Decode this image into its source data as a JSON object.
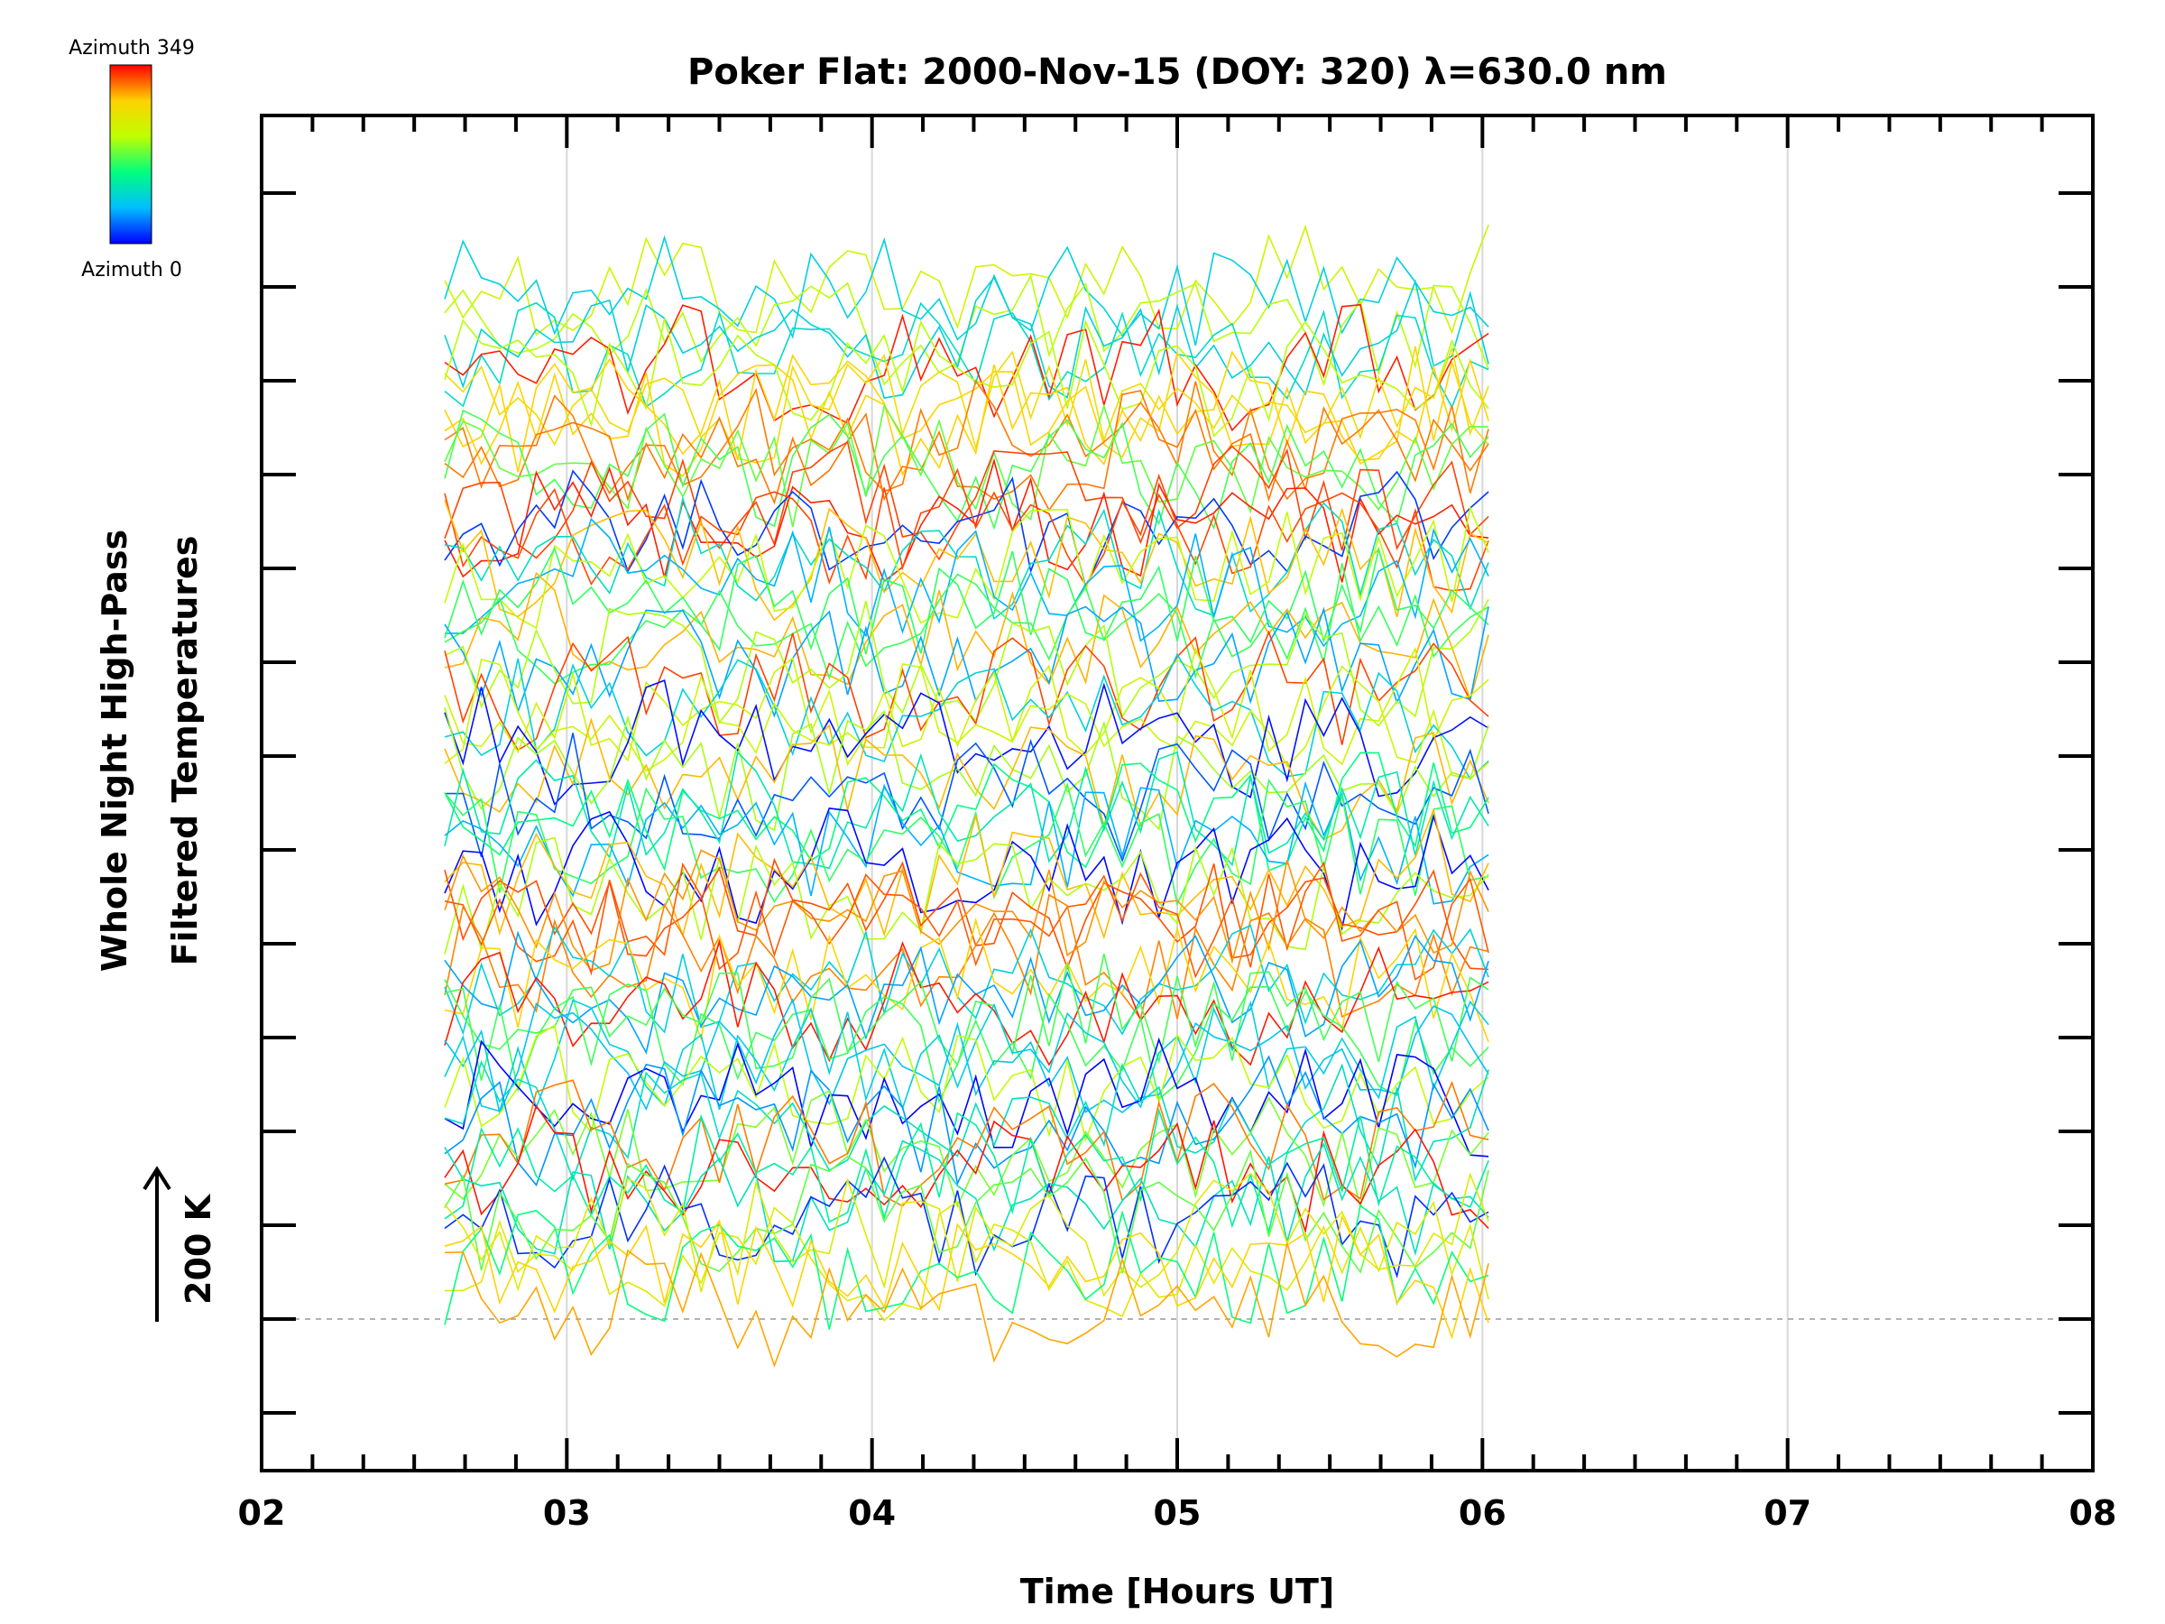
{
  "chart_data": {
    "type": "line",
    "title": "Poker Flat: 2000-Nov-15 (DOY: 320) λ=630.0 nm",
    "xlabel": "Time [Hours UT]",
    "ylabel_line1": "Whole Night High-Pass",
    "ylabel_line2": "Filtered Temperatures",
    "scale_label": "200 K",
    "xlim": [
      2,
      8
    ],
    "x_ticks": [
      "02",
      "03",
      "04",
      "05",
      "06",
      "07",
      "08"
    ],
    "grid": "vertical",
    "colorbar": {
      "top_label": "Azimuth 349",
      "bottom_label": "Azimuth 0",
      "min": 0,
      "max": 349,
      "colors": [
        "#0000ff",
        "#00bfff",
        "#00ff7f",
        "#bfff00",
        "#ffd200",
        "#ff0000"
      ],
      "placement": "top-left"
    },
    "series_summary": {
      "count": 70,
      "time_start": 2.6,
      "time_end": 6.03,
      "time_step": 0.06
    }
  }
}
